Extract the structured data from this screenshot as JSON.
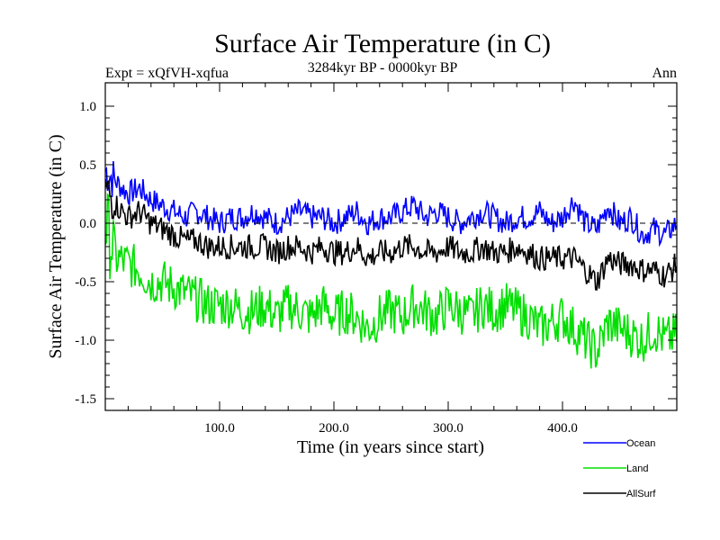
{
  "chart_data": {
    "type": "line",
    "title": "Surface Air Temperature (in C)",
    "subtitle": "3284kyr BP - 0000kyr BP",
    "left_label": "Expt = xQfVH-xqfua",
    "right_label": "Ann",
    "xlabel": "Time (in years since start)",
    "ylabel": "Surface Air Temperature (in C)",
    "xlim": [
      0,
      500
    ],
    "ylim": [
      -1.6,
      1.2
    ],
    "x_ticks": [
      100,
      200,
      300,
      400
    ],
    "x_tick_labels": [
      "100.0",
      "200.0",
      "300.0",
      "400.0"
    ],
    "y_ticks": [
      1.0,
      0.5,
      0.0,
      -0.5,
      -1.0,
      -1.5
    ],
    "y_tick_labels": [
      "1.0",
      "0.5",
      "0.0",
      "-0.5",
      "-1.0",
      "-1.5"
    ],
    "reference_line": 0.0,
    "legend_position": "bottom-right",
    "series": [
      {
        "name": "Ocean",
        "color": "#0000ff",
        "x": [
          0,
          10,
          20,
          30,
          40,
          50,
          60,
          70,
          80,
          90,
          100,
          110,
          120,
          130,
          140,
          150,
          160,
          170,
          180,
          190,
          200,
          210,
          220,
          230,
          240,
          250,
          260,
          270,
          280,
          290,
          300,
          310,
          320,
          330,
          340,
          350,
          360,
          370,
          380,
          390,
          400,
          410,
          420,
          430,
          440,
          450,
          460,
          470,
          480,
          490,
          500
        ],
        "values": [
          0.45,
          0.35,
          0.25,
          0.3,
          0.2,
          0.15,
          0.1,
          0.05,
          0.1,
          0.05,
          0.0,
          0.05,
          0.05,
          0.1,
          0.05,
          0.0,
          0.05,
          0.1,
          0.05,
          0.05,
          0.0,
          0.05,
          0.1,
          0.0,
          0.05,
          0.05,
          0.1,
          0.15,
          0.05,
          0.1,
          0.05,
          0.0,
          0.05,
          0.1,
          0.05,
          0.0,
          0.05,
          0.05,
          0.1,
          0.0,
          0.05,
          0.2,
          0.0,
          -0.05,
          0.15,
          0.0,
          0.05,
          -0.1,
          -0.05,
          -0.1,
          0.0
        ]
      },
      {
        "name": "Land",
        "color": "#00e000",
        "x": [
          0,
          10,
          20,
          30,
          40,
          50,
          60,
          70,
          80,
          90,
          100,
          110,
          120,
          130,
          140,
          150,
          160,
          170,
          180,
          190,
          200,
          210,
          220,
          230,
          240,
          250,
          260,
          270,
          280,
          290,
          300,
          310,
          320,
          330,
          340,
          350,
          360,
          370,
          380,
          390,
          400,
          410,
          420,
          430,
          440,
          450,
          460,
          470,
          480,
          490,
          500
        ],
        "values": [
          0.0,
          -0.3,
          -0.35,
          -0.4,
          -0.5,
          -0.5,
          -0.55,
          -0.6,
          -0.65,
          -0.7,
          -0.7,
          -0.7,
          -0.75,
          -0.75,
          -0.7,
          -0.8,
          -0.7,
          -0.75,
          -0.8,
          -0.7,
          -0.8,
          -0.75,
          -0.8,
          -0.9,
          -0.8,
          -0.75,
          -0.8,
          -0.7,
          -0.75,
          -0.8,
          -0.7,
          -0.75,
          -0.8,
          -0.7,
          -0.75,
          -0.7,
          -0.75,
          -0.8,
          -0.9,
          -0.85,
          -0.8,
          -0.9,
          -1.0,
          -1.1,
          -0.85,
          -0.9,
          -0.95,
          -1.0,
          -0.9,
          -1.0,
          -0.95
        ]
      },
      {
        "name": "AllSurf",
        "color": "#000000",
        "x": [
          0,
          10,
          20,
          30,
          40,
          50,
          60,
          70,
          80,
          90,
          100,
          110,
          120,
          130,
          140,
          150,
          160,
          170,
          180,
          190,
          200,
          210,
          220,
          230,
          240,
          250,
          260,
          270,
          280,
          290,
          300,
          310,
          320,
          330,
          340,
          350,
          360,
          370,
          380,
          390,
          400,
          410,
          420,
          430,
          440,
          450,
          460,
          470,
          480,
          490,
          500
        ],
        "values": [
          0.3,
          0.15,
          0.05,
          0.1,
          0.0,
          -0.05,
          -0.1,
          -0.15,
          -0.15,
          -0.2,
          -0.2,
          -0.2,
          -0.2,
          -0.2,
          -0.2,
          -0.25,
          -0.2,
          -0.2,
          -0.25,
          -0.2,
          -0.25,
          -0.25,
          -0.2,
          -0.3,
          -0.25,
          -0.25,
          -0.2,
          -0.2,
          -0.25,
          -0.25,
          -0.2,
          -0.25,
          -0.25,
          -0.2,
          -0.25,
          -0.25,
          -0.2,
          -0.25,
          -0.3,
          -0.3,
          -0.3,
          -0.3,
          -0.4,
          -0.5,
          -0.3,
          -0.35,
          -0.35,
          -0.4,
          -0.4,
          -0.45,
          -0.35
        ]
      }
    ]
  }
}
